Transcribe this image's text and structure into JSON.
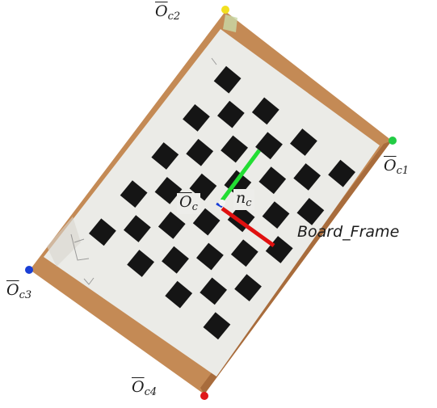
{
  "labels": {
    "corner1": {
      "base": "O",
      "sub": "c1"
    },
    "corner2": {
      "base": "O",
      "sub": "c2"
    },
    "corner3": {
      "base": "O",
      "sub": "c3"
    },
    "corner4": {
      "base": "O",
      "sub": "c4"
    },
    "center": {
      "base": "O",
      "sub": "c"
    },
    "normal": {
      "base": "n",
      "sub": "c"
    },
    "frame": "Board_Frame"
  },
  "colors": {
    "corner1": "#22cc44",
    "corner2": "#f2e020",
    "corner3": "#1a3fd6",
    "corner4": "#e01818",
    "x_axis": "#e01010",
    "y_axis": "#22dd33",
    "z_axis": "#1a3fd6",
    "board_wood": "#c68a52",
    "board_white": "#ebebe8",
    "square": "#151515"
  },
  "board": {
    "rows": 9,
    "cols": 7
  }
}
